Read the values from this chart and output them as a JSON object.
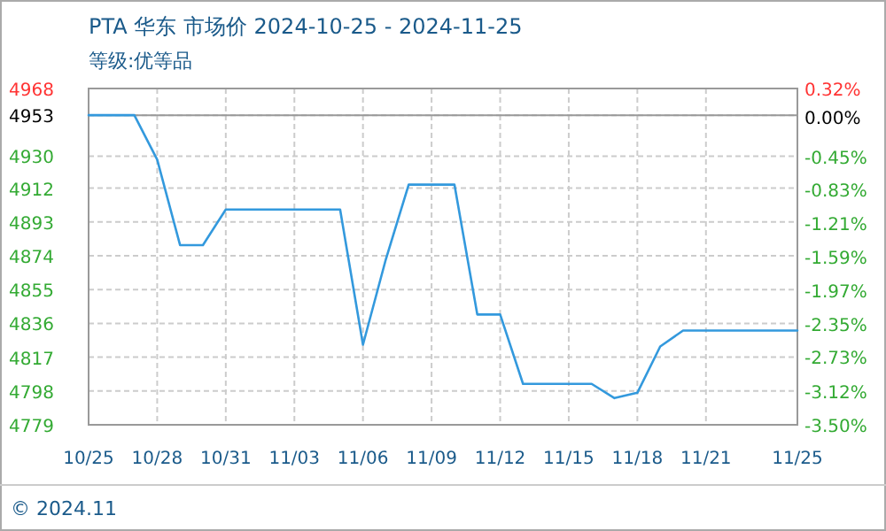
{
  "chart_data": {
    "type": "line",
    "title": "PTA 华东 市场价 2024-10-25 - 2024-11-25",
    "subtitle": "等级:优等品",
    "xlim": [
      "2024-10-25",
      "2024-11-25"
    ],
    "xticks": [
      {
        "value": "2024-10-25",
        "label": "10/25"
      },
      {
        "value": "2024-10-28",
        "label": "10/28"
      },
      {
        "value": "2024-10-31",
        "label": "10/31"
      },
      {
        "value": "2024-11-03",
        "label": "11/03"
      },
      {
        "value": "2024-11-06",
        "label": "11/06"
      },
      {
        "value": "2024-11-09",
        "label": "11/09"
      },
      {
        "value": "2024-11-12",
        "label": "11/12"
      },
      {
        "value": "2024-11-15",
        "label": "11/15"
      },
      {
        "value": "2024-11-18",
        "label": "11/18"
      },
      {
        "value": "2024-11-21",
        "label": "11/21"
      },
      {
        "value": "2024-11-25",
        "label": "11/25"
      }
    ],
    "ylim": [
      4779,
      4968
    ],
    "yticks": [
      4779,
      4798,
      4817,
      4836,
      4855,
      4874,
      4893,
      4912,
      4930,
      4953,
      4968
    ],
    "y2lim": [
      -3.5,
      0.32
    ],
    "y2ticks": [
      {
        "value": -3.5,
        "label": "-3.50%"
      },
      {
        "value": -3.12,
        "label": "-3.12%"
      },
      {
        "value": -2.73,
        "label": "-2.73%"
      },
      {
        "value": -2.35,
        "label": "-2.35%"
      },
      {
        "value": -1.97,
        "label": "-1.97%"
      },
      {
        "value": -1.59,
        "label": "-1.59%"
      },
      {
        "value": -1.21,
        "label": "-1.21%"
      },
      {
        "value": -0.83,
        "label": "-0.83%"
      },
      {
        "value": -0.45,
        "label": "-0.45%"
      },
      {
        "value": 0,
        "label": "0.00%"
      },
      {
        "value": 0.32,
        "label": "0.32%"
      }
    ],
    "grid": true,
    "ref_lines": [
      {
        "axis": "y",
        "value": 4953,
        "color": "#999999"
      }
    ],
    "series": [
      {
        "color": "#3399dd",
        "x": [
          "2024-10-25",
          "2024-10-27",
          "2024-10-28",
          "2024-10-29",
          "2024-10-30",
          "2024-10-31",
          "2024-11-05",
          "2024-11-06",
          "2024-11-07",
          "2024-11-08",
          "2024-11-10",
          "2024-11-11",
          "2024-11-12",
          "2024-11-13",
          "2024-11-16",
          "2024-11-17",
          "2024-11-18",
          "2024-11-19",
          "2024-11-20",
          "2024-11-25"
        ],
        "values": [
          4953,
          4953,
          4928,
          4880,
          4880,
          4900,
          4900,
          4824,
          4872,
          4914,
          4914,
          4841,
          4841,
          4802,
          4802,
          4794,
          4797,
          4823,
          4832,
          4832
        ]
      }
    ],
    "annotations": [
      "© 2024.11"
    ]
  }
}
